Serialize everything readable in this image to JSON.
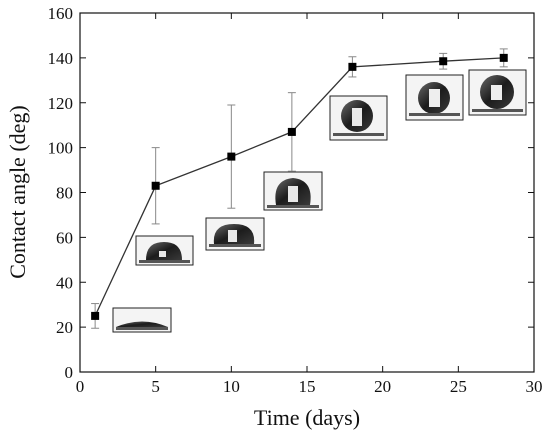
{
  "chart_data": {
    "type": "line",
    "title": "",
    "xlabel": "Time (days)",
    "ylabel": "Contact angle (deg)",
    "xlim": [
      0,
      30
    ],
    "ylim": [
      0,
      160
    ],
    "x_ticks": [
      0,
      5,
      10,
      15,
      20,
      25,
      30
    ],
    "y_ticks": [
      0,
      20,
      40,
      60,
      80,
      100,
      120,
      140,
      160
    ],
    "grid": false,
    "legend": "none",
    "series": [
      {
        "x": [
          1,
          5,
          10,
          14,
          18,
          24,
          28
        ],
        "y": [
          25,
          83,
          96,
          107,
          136,
          138.5,
          140
        ],
        "error": [
          5.5,
          17,
          23,
          17.5,
          4.5,
          3.5,
          4
        ]
      }
    ],
    "annotations": "droplet photo insets near each data point",
    "colors": {
      "line": "#333333",
      "marker": "#000000",
      "error_bar": "#888888"
    }
  }
}
